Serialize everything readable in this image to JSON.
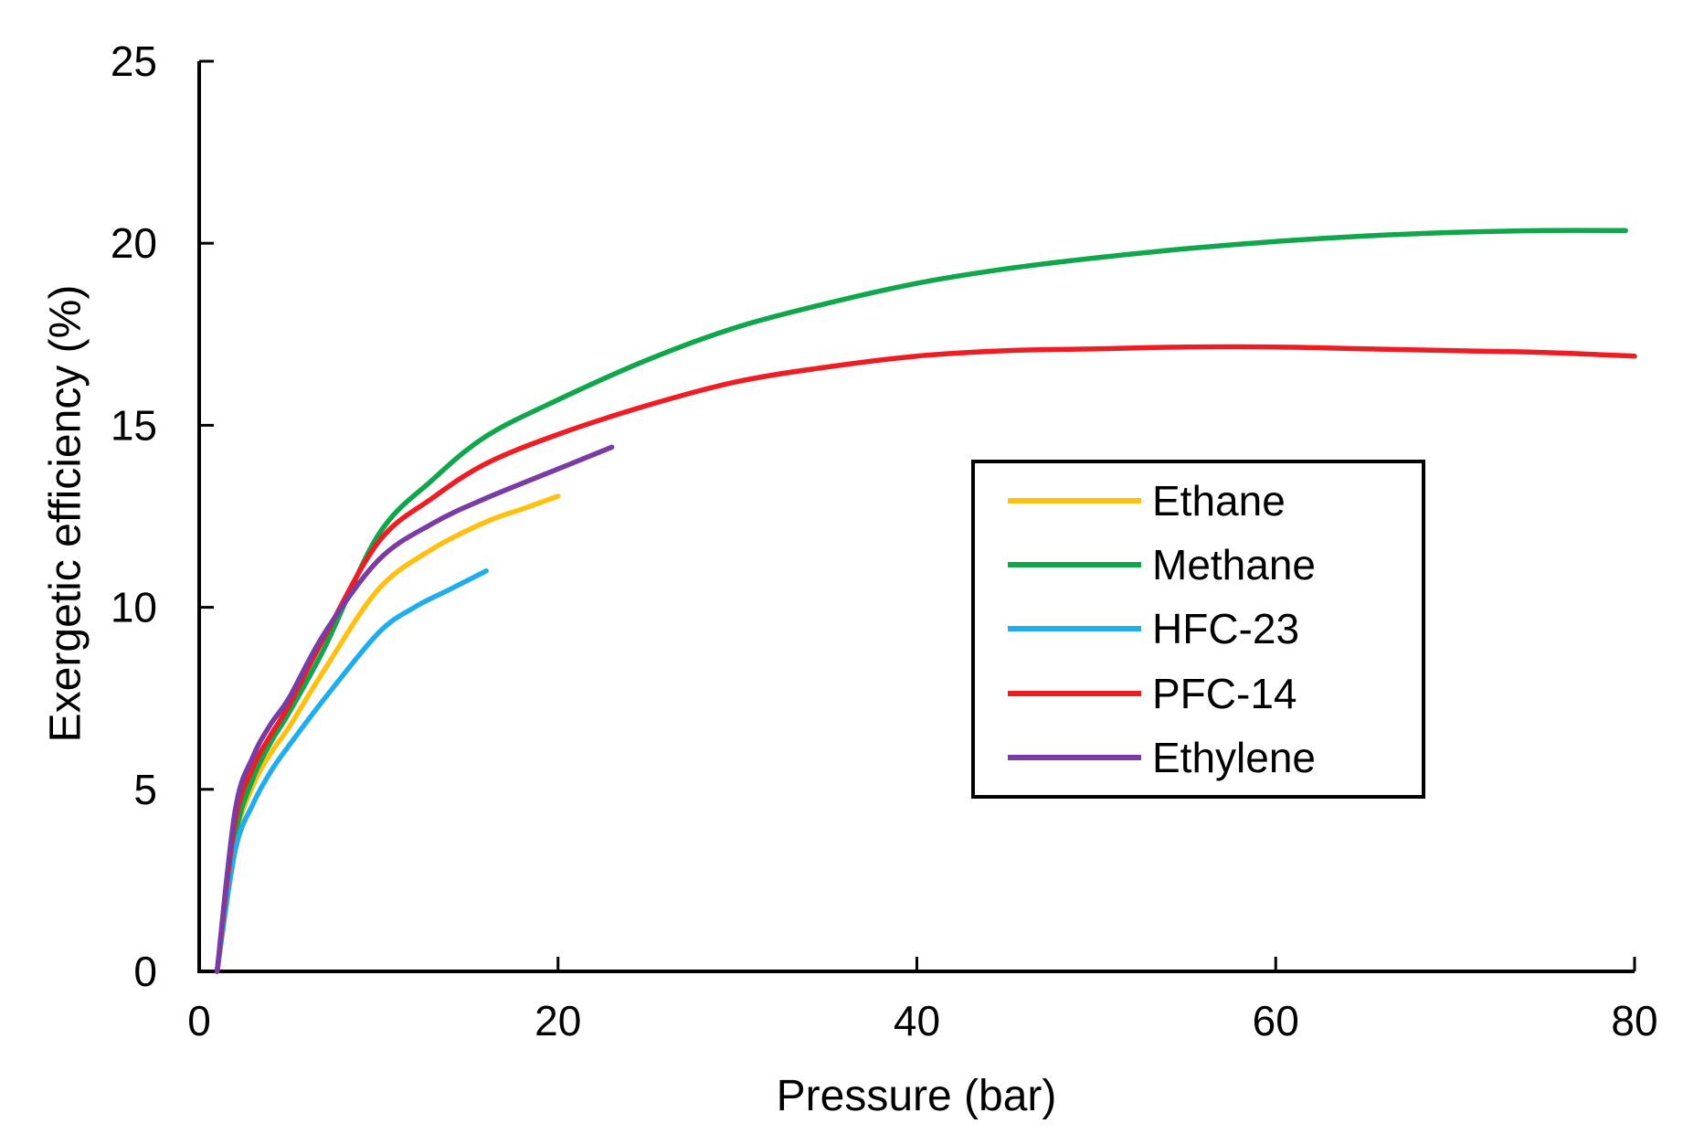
{
  "axis_color": "#000000",
  "background_color": "#ffffff",
  "chart_data": {
    "type": "line",
    "title": "",
    "xlabel": "Pressure (bar)",
    "ylabel": "Exergetic efficiency (%)",
    "xlim": [
      0,
      80
    ],
    "ylim": [
      0,
      25
    ],
    "x_ticks": [
      0,
      20,
      40,
      60,
      80
    ],
    "y_ticks": [
      0,
      5,
      10,
      15,
      20,
      25
    ],
    "grid": false,
    "tick_direction": "in",
    "legend_position": "middle-right",
    "legend_border": true,
    "series": [
      {
        "name": "Ethane",
        "color": "#FFC010",
        "points": [
          [
            1,
            0
          ],
          [
            2,
            3.6
          ],
          [
            3,
            5.1
          ],
          [
            4,
            6.0
          ],
          [
            5,
            6.7
          ],
          [
            7,
            8.3
          ],
          [
            10,
            10.5
          ],
          [
            13,
            11.6
          ],
          [
            16,
            12.35
          ],
          [
            18,
            12.7
          ],
          [
            20,
            13.05
          ]
        ]
      },
      {
        "name": "Methane",
        "color": "#0FA64C",
        "points": [
          [
            1,
            0
          ],
          [
            2,
            3.7
          ],
          [
            3,
            5.3
          ],
          [
            4,
            6.3
          ],
          [
            5,
            7.1
          ],
          [
            7,
            8.9
          ],
          [
            10,
            12.0
          ],
          [
            13,
            13.5
          ],
          [
            16,
            14.7
          ],
          [
            20,
            15.7
          ],
          [
            25,
            16.8
          ],
          [
            30,
            17.7
          ],
          [
            35,
            18.35
          ],
          [
            40,
            18.9
          ],
          [
            45,
            19.3
          ],
          [
            50,
            19.6
          ],
          [
            55,
            19.85
          ],
          [
            60,
            20.05
          ],
          [
            65,
            20.2
          ],
          [
            70,
            20.3
          ],
          [
            75,
            20.35
          ],
          [
            79.5,
            20.35
          ]
        ]
      },
      {
        "name": "HFC-23",
        "color": "#1FAEEA",
        "points": [
          [
            1,
            0
          ],
          [
            2,
            3.3
          ],
          [
            3,
            4.6
          ],
          [
            4,
            5.5
          ],
          [
            5,
            6.2
          ],
          [
            7,
            7.5
          ],
          [
            10,
            9.3
          ],
          [
            12,
            10.0
          ],
          [
            14,
            10.5
          ],
          [
            16,
            11.0
          ]
        ]
      },
      {
        "name": "PFC-14",
        "color": "#EE1C23",
        "points": [
          [
            1,
            0
          ],
          [
            2,
            4.1
          ],
          [
            3,
            5.6
          ],
          [
            4,
            6.5
          ],
          [
            5,
            7.3
          ],
          [
            7,
            9.2
          ],
          [
            10,
            11.8
          ],
          [
            13,
            13.0
          ],
          [
            16,
            13.95
          ],
          [
            20,
            14.75
          ],
          [
            25,
            15.55
          ],
          [
            30,
            16.2
          ],
          [
            35,
            16.6
          ],
          [
            40,
            16.9
          ],
          [
            45,
            17.05
          ],
          [
            50,
            17.1
          ],
          [
            55,
            17.15
          ],
          [
            60,
            17.15
          ],
          [
            65,
            17.1
          ],
          [
            70,
            17.05
          ],
          [
            75,
            17.0
          ],
          [
            80,
            16.9
          ]
        ]
      },
      {
        "name": "Ethylene",
        "color": "#7A3CA2",
        "points": [
          [
            1,
            0
          ],
          [
            2,
            4.4
          ],
          [
            3,
            5.9
          ],
          [
            4,
            6.8
          ],
          [
            5,
            7.5
          ],
          [
            7,
            9.3
          ],
          [
            10,
            11.3
          ],
          [
            13,
            12.3
          ],
          [
            16,
            13.0
          ],
          [
            20,
            13.8
          ],
          [
            23,
            14.4
          ]
        ]
      }
    ]
  }
}
